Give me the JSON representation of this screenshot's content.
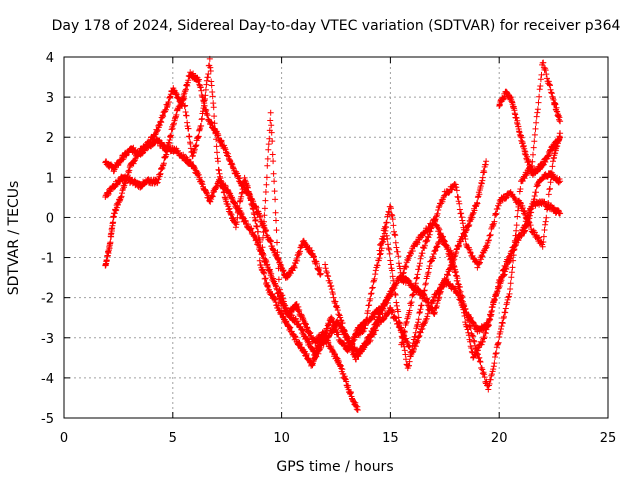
{
  "chart_data": {
    "type": "scatter",
    "title": "Day 178 of 2024, Sidereal Day-to-day VTEC variation (SDTVAR) for receiver p364",
    "xlabel": "GPS time / hours",
    "ylabel": "SDTVAR / TECUs",
    "xlim": [
      0,
      25
    ],
    "ylim": [
      -5,
      4
    ],
    "xticks": [
      "0",
      "5",
      "10",
      "15",
      "20",
      "25"
    ],
    "yticks": [
      "-5",
      "-4",
      "-3",
      "-2",
      "-1",
      "0",
      "1",
      "2",
      "3",
      "4"
    ],
    "grid": true,
    "legend": "none",
    "marker": "+",
    "color": "#ff0000",
    "series": [
      {
        "x": [
          1.9,
          2.1,
          2.3,
          2.6,
          3.0,
          3.4,
          3.8,
          4.2,
          4.6,
          5.0,
          5.4,
          5.8,
          6.2,
          6.6,
          7.0,
          7.4,
          7.8,
          8.2,
          8.6,
          9.0,
          9.4,
          9.8,
          10.2,
          10.6,
          11.0,
          11.4,
          11.8
        ],
        "y": [
          -1.2,
          -0.7,
          0.1,
          0.5,
          1.2,
          1.6,
          1.8,
          2.1,
          2.6,
          3.2,
          2.8,
          3.6,
          3.4,
          2.5,
          2.1,
          1.7,
          1.2,
          0.8,
          0.5,
          0.0,
          -0.5,
          -1.0,
          -1.5,
          -1.2,
          -0.6,
          -0.9,
          -1.4
        ]
      },
      {
        "x": [
          1.9,
          2.3,
          2.7,
          3.1,
          3.5,
          3.9,
          4.3,
          4.7,
          5.1,
          5.5,
          5.9,
          6.3,
          6.7,
          7.1,
          7.5,
          7.9,
          8.3,
          8.7,
          9.1,
          9.5,
          9.9,
          10.3,
          10.7,
          11.1,
          11.5,
          11.9,
          12.3,
          12.7,
          13.1,
          13.5
        ],
        "y": [
          1.4,
          1.2,
          1.5,
          1.7,
          1.6,
          1.8,
          1.9,
          1.7,
          1.7,
          1.5,
          1.3,
          0.9,
          0.4,
          0.9,
          0.7,
          0.3,
          -0.1,
          -0.4,
          -0.9,
          -1.4,
          -2.0,
          -2.4,
          -2.2,
          -2.7,
          -3.1,
          -2.9,
          -3.3,
          -3.7,
          -4.3,
          -4.8
        ]
      },
      {
        "x": [
          1.9,
          2.3,
          2.7,
          3.1,
          3.5,
          3.9,
          4.3,
          4.7,
          5.1,
          5.5,
          5.9,
          6.3,
          6.7,
          7.1,
          7.5,
          7.9,
          8.3,
          8.7,
          9.1,
          9.5,
          9.9,
          10.3,
          10.7,
          11.1,
          11.5,
          11.9,
          12.3,
          12.7,
          13.1,
          13.5,
          13.9,
          14.3,
          14.7,
          15.1
        ],
        "y": [
          0.5,
          0.8,
          1.0,
          0.9,
          0.8,
          0.9,
          0.9,
          1.6,
          2.5,
          3.0,
          1.5,
          2.3,
          3.9,
          1.2,
          0.3,
          -0.2,
          1.0,
          0.2,
          -0.9,
          2.6,
          -1.8,
          -2.4,
          -2.6,
          -3.0,
          -3.4,
          -3.0,
          -2.5,
          -3.1,
          -3.3,
          -2.8,
          -2.6,
          -2.4,
          -2.2,
          -1.8
        ]
      },
      {
        "x": [
          9.0,
          9.4,
          9.8,
          10.2,
          10.6,
          11.0,
          11.4,
          11.8,
          12.2,
          12.6,
          13.0,
          13.4,
          13.8,
          14.2,
          14.6,
          15.0,
          15.4,
          15.8,
          16.2,
          16.6,
          17.0,
          17.4,
          17.8,
          18.2,
          18.6,
          19.0,
          19.4
        ],
        "y": [
          -1.1,
          -1.8,
          -2.2,
          -2.6,
          -3.0,
          -3.3,
          -3.7,
          -3.2,
          -2.9,
          -2.6,
          -3.0,
          -3.5,
          -3.2,
          -2.8,
          -2.3,
          -1.9,
          -1.5,
          -1.6,
          -1.8,
          -2.0,
          -2.4,
          -1.7,
          -1.2,
          -0.6,
          -0.2,
          0.4,
          1.4
        ]
      },
      {
        "x": [
          12.0,
          12.5,
          13.0,
          13.5,
          14.0,
          14.5,
          15.0,
          15.5,
          16.0,
          16.5,
          17.0,
          17.5,
          18.0,
          18.5,
          19.0,
          19.5,
          20.0,
          20.5,
          21.0,
          21.5,
          22.0,
          22.5,
          22.8
        ],
        "y": [
          -1.2,
          -2.2,
          -3.0,
          -3.4,
          -3.1,
          -2.6,
          -2.3,
          -2.8,
          -3.4,
          -2.7,
          -2.0,
          -1.6,
          -1.8,
          -2.4,
          -2.8,
          -2.7,
          -1.6,
          -0.9,
          -0.4,
          0.3,
          0.4,
          0.2,
          0.1
        ]
      },
      {
        "x": [
          13.3,
          13.8,
          14.3,
          14.8,
          15.3,
          15.8,
          16.3,
          16.8,
          17.3,
          17.8,
          18.3,
          18.8,
          19.3,
          19.8,
          20.3,
          20.8,
          21.3,
          21.8,
          22.3,
          22.8
        ],
        "y": [
          -3.0,
          -2.8,
          -1.4,
          -0.3,
          -2.2,
          -3.8,
          -2.5,
          -1.2,
          -0.5,
          -0.9,
          -2.2,
          -3.5,
          -3.0,
          -2.0,
          -1.3,
          -0.6,
          -0.2,
          0.9,
          1.1,
          0.9
        ]
      },
      {
        "x": [
          15.5,
          16.0,
          16.5,
          17.0,
          17.5,
          18.0,
          18.5,
          19.0,
          19.5,
          20.0,
          20.5,
          21.0,
          21.5,
          22.0,
          22.5,
          22.8
        ],
        "y": [
          -3.2,
          -2.0,
          -0.8,
          -0.1,
          0.6,
          0.8,
          -0.7,
          -1.2,
          -0.6,
          0.4,
          0.6,
          0.3,
          -0.3,
          -0.7,
          1.5,
          2.1
        ]
      },
      {
        "x": [
          14.5,
          15.0,
          15.5,
          16.0,
          16.5,
          17.0,
          17.5,
          18.0,
          18.5,
          19.0,
          19.5,
          20.0,
          20.5,
          21.0,
          21.5,
          22.0,
          22.5,
          22.8
        ],
        "y": [
          -0.8,
          0.3,
          -1.5,
          -0.8,
          -0.4,
          -0.1,
          -0.6,
          -1.4,
          -2.4,
          -3.4,
          -4.3,
          -3.0,
          -1.8,
          0.9,
          1.3,
          3.9,
          2.9,
          2.4
        ]
      },
      {
        "x": [
          20.0,
          20.3,
          20.6,
          20.9,
          21.2,
          21.5,
          21.8,
          22.1,
          22.4,
          22.8
        ],
        "y": [
          2.8,
          3.1,
          2.9,
          2.2,
          1.6,
          1.1,
          1.2,
          1.4,
          1.7,
          2.0
        ]
      }
    ]
  }
}
